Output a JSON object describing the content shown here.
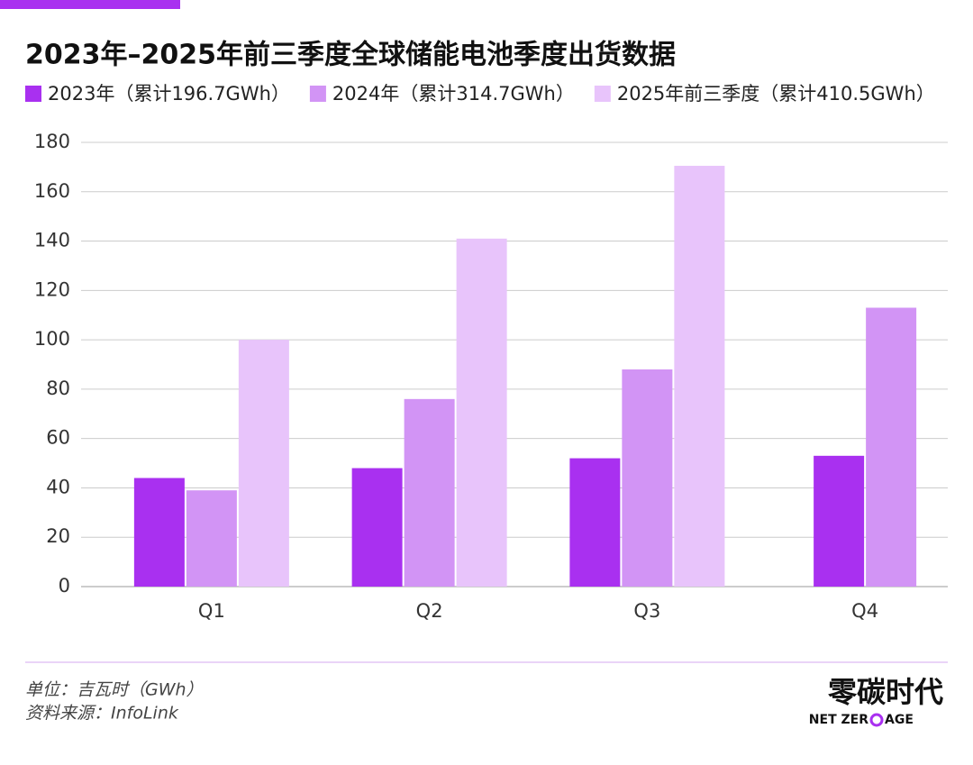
{
  "chart_data": {
    "type": "bar",
    "title": "2023年–2025年前三季度全球储能电池季度出货数据",
    "categories": [
      "Q1",
      "Q2",
      "Q3",
      "Q4"
    ],
    "series": [
      {
        "name": "2023年（累计196.7GWh）",
        "color": "#a930f0",
        "values": [
          44,
          48,
          52,
          53
        ]
      },
      {
        "name": "2024年（累计314.7GWh）",
        "color": "#d294f5",
        "values": [
          39,
          76,
          88,
          113
        ]
      },
      {
        "name": "2025年前三季度（累计410.5GWh）",
        "color": "#e8c4fb",
        "values": [
          100,
          141,
          170.5,
          null
        ]
      }
    ],
    "ylim": [
      0,
      180
    ],
    "yticks": [
      0,
      20,
      40,
      60,
      80,
      100,
      120,
      140,
      160,
      180
    ],
    "grid": true,
    "notes": [
      "单位：吉瓦时（GWh）",
      "资料来源：InfoLink"
    ],
    "logo": {
      "name": "零碳时代",
      "tagline_left": "NET ZER",
      "tagline_right": "AGE"
    }
  }
}
